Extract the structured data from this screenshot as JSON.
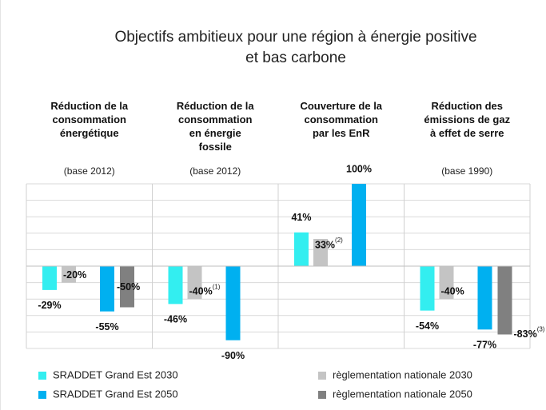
{
  "chart_data": {
    "type": "bar",
    "title": "Objectifs ambitieux pour une région à énergie positive\net bas carbone",
    "categories": [
      "Réduction de la\nconsommation\nénergétique",
      "Réduction de la\nconsommation\nen énergie\nfossile",
      "Couverture de la\nconsommation\npar les EnR",
      "Réduction des\némissions de gaz\nà effet de serre"
    ],
    "bases": [
      "(base 2012)",
      "(base 2012)",
      null,
      "(base 1990)"
    ],
    "series": [
      {
        "name": "SRADDET Grand Est 2030",
        "color": "#33eef0",
        "values": [
          -29,
          -46,
          41,
          -54
        ],
        "value_labels": [
          "-29%",
          "-46%",
          "41%",
          "-54%"
        ]
      },
      {
        "name": "règlementation nationale 2030",
        "color": "#c4c4c4",
        "values": [
          -20,
          -40,
          33,
          -40
        ],
        "value_labels": [
          "-20%",
          "-40%",
          "33%",
          "-40%"
        ],
        "notes": [
          null,
          "(1)",
          "(2)",
          null
        ]
      },
      {
        "name": "SRADDET Grand Est 2050",
        "color": "#00b0f0",
        "values": [
          -55,
          -90,
          100,
          -77
        ],
        "value_labels": [
          "-55%",
          "-90%",
          "100%",
          "-77%"
        ]
      },
      {
        "name": "règlementation nationale 2050",
        "color": "#808080",
        "values": [
          -50,
          null,
          null,
          -83
        ],
        "value_labels": [
          "-50%",
          null,
          null,
          "-83%"
        ],
        "notes": [
          null,
          null,
          null,
          "(3)"
        ]
      }
    ],
    "ylim": [
      -100,
      100
    ],
    "yticks": [
      -100,
      -80,
      -60,
      -40,
      -20,
      0,
      20,
      40,
      60,
      80,
      100
    ],
    "grid": true
  }
}
